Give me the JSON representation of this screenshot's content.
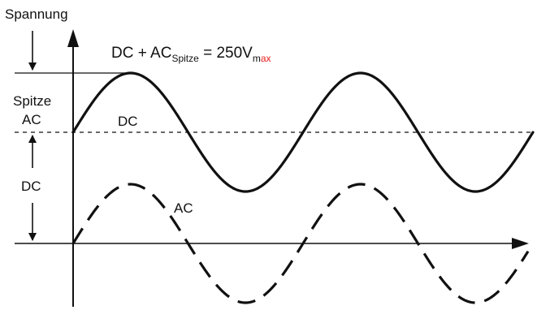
{
  "labels": {
    "y_axis": "Spannung",
    "formula": {
      "part1": "DC + AC",
      "sub1": "Spitze",
      "part2": " = 250V",
      "sub2a": "m",
      "sub2b": "ax"
    },
    "peak_ac_line1": "Spitze",
    "peak_ac_line2": "AC",
    "dc_left": "DC",
    "dc_curve": "DC",
    "ac_curve": "AC"
  },
  "colors": {
    "ink": "#111111",
    "accent": "#e8201c"
  }
}
